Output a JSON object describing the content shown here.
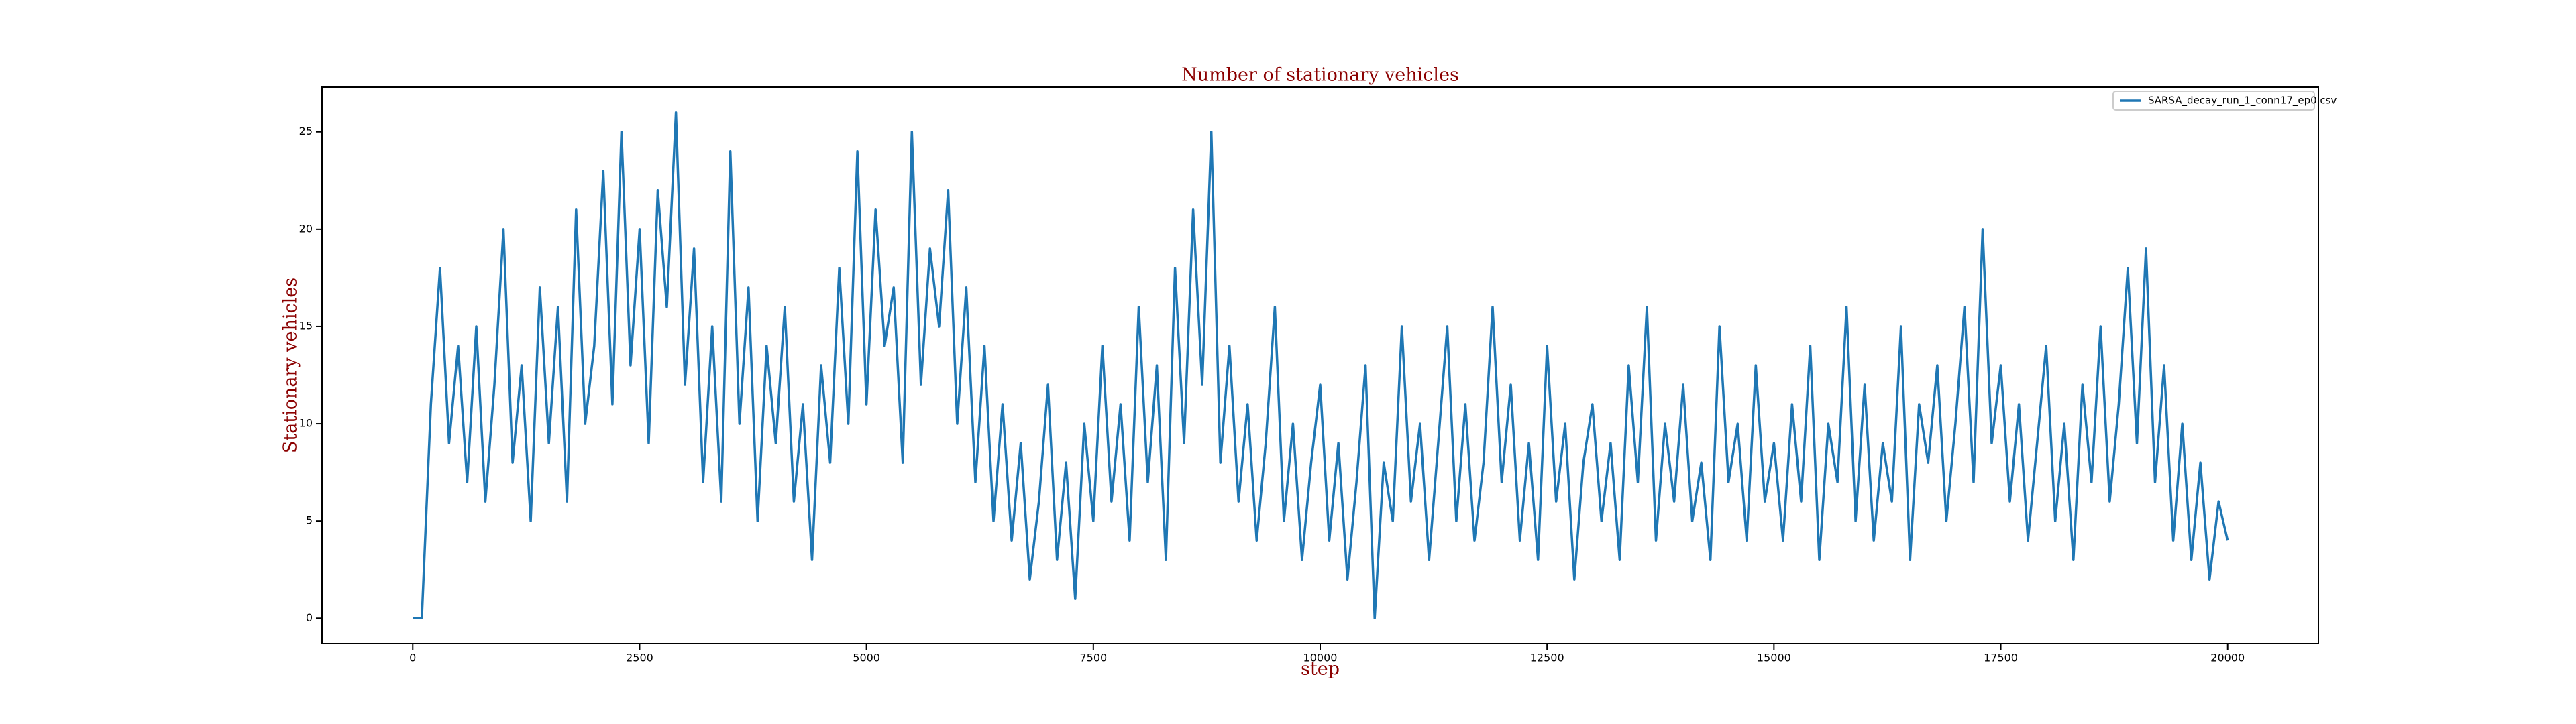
{
  "chart_data": {
    "type": "line",
    "title": "Number of stationary vehicles",
    "xlabel": "step",
    "ylabel": "Stationary vehicles",
    "x": [
      0,
      100,
      200,
      300,
      400,
      500,
      600,
      700,
      800,
      900,
      1000,
      1100,
      1200,
      1300,
      1400,
      1500,
      1600,
      1700,
      1800,
      1900,
      2000,
      2100,
      2200,
      2300,
      2400,
      2500,
      2600,
      2700,
      2800,
      2900,
      3000,
      3100,
      3200,
      3300,
      3400,
      3500,
      3600,
      3700,
      3800,
      3900,
      4000,
      4100,
      4200,
      4300,
      4400,
      4500,
      4600,
      4700,
      4800,
      4900,
      5000,
      5100,
      5200,
      5300,
      5400,
      5500,
      5600,
      5700,
      5800,
      5900,
      6000,
      6100,
      6200,
      6300,
      6400,
      6500,
      6600,
      6700,
      6800,
      6900,
      7000,
      7100,
      7200,
      7300,
      7400,
      7500,
      7600,
      7700,
      7800,
      7900,
      8000,
      8100,
      8200,
      8300,
      8400,
      8500,
      8600,
      8700,
      8800,
      8900,
      9000,
      9100,
      9200,
      9300,
      9400,
      9500,
      9600,
      9700,
      9800,
      9900,
      10000,
      10100,
      10200,
      10300,
      10400,
      10500,
      10600,
      10700,
      10800,
      10900,
      11000,
      11100,
      11200,
      11300,
      11400,
      11500,
      11600,
      11700,
      11800,
      11900,
      12000,
      12100,
      12200,
      12300,
      12400,
      12500,
      12600,
      12700,
      12800,
      12900,
      13000,
      13100,
      13200,
      13300,
      13400,
      13500,
      13600,
      13700,
      13800,
      13900,
      14000,
      14100,
      14200,
      14300,
      14400,
      14500,
      14600,
      14700,
      14800,
      14900,
      15000,
      15100,
      15200,
      15300,
      15400,
      15500,
      15600,
      15700,
      15800,
      15900,
      16000,
      16100,
      16200,
      16300,
      16400,
      16500,
      16600,
      16700,
      16800,
      16900,
      17000,
      17100,
      17200,
      17300,
      17400,
      17500,
      17600,
      17700,
      17800,
      17900,
      18000,
      18100,
      18200,
      18300,
      18400,
      18500,
      18600,
      18700,
      18800,
      18900,
      19000,
      19100,
      19200,
      19300,
      19400,
      19500,
      19600,
      19700,
      19800,
      19900,
      20000
    ],
    "series": [
      {
        "name": "SARSA_decay_run_1_conn17_ep0.csv",
        "color": "#1f77b4",
        "values": [
          0,
          0,
          11,
          18,
          9,
          14,
          7,
          15,
          6,
          12,
          20,
          8,
          13,
          5,
          17,
          9,
          16,
          6,
          21,
          10,
          14,
          23,
          11,
          25,
          13,
          20,
          9,
          22,
          16,
          26,
          12,
          19,
          7,
          15,
          6,
          24,
          10,
          17,
          5,
          14,
          9,
          16,
          6,
          11,
          3,
          13,
          8,
          18,
          10,
          24,
          11,
          21,
          14,
          17,
          8,
          25,
          12,
          19,
          15,
          22,
          10,
          17,
          7,
          14,
          5,
          11,
          4,
          9,
          2,
          6,
          12,
          3,
          8,
          1,
          10,
          5,
          14,
          6,
          11,
          4,
          16,
          7,
          13,
          3,
          18,
          9,
          21,
          12,
          25,
          8,
          14,
          6,
          11,
          4,
          9,
          16,
          5,
          10,
          3,
          8,
          12,
          4,
          9,
          2,
          7,
          13,
          0,
          8,
          5,
          15,
          6,
          10,
          3,
          9,
          15,
          5,
          11,
          4,
          8,
          16,
          7,
          12,
          4,
          9,
          3,
          14,
          6,
          10,
          2,
          8,
          11,
          5,
          9,
          3,
          13,
          7,
          16,
          4,
          10,
          6,
          12,
          5,
          8,
          3,
          15,
          7,
          10,
          4,
          13,
          6,
          9,
          4,
          11,
          6,
          14,
          3,
          10,
          7,
          16,
          5,
          12,
          4,
          9,
          6,
          15,
          3,
          11,
          8,
          13,
          5,
          10,
          16,
          7,
          20,
          9,
          13,
          6,
          11,
          4,
          9,
          14,
          5,
          10,
          3,
          12,
          7,
          15,
          6,
          11,
          18,
          9,
          19,
          7,
          13,
          4,
          10,
          3,
          8,
          2,
          6,
          4
        ]
      }
    ],
    "xlim": [
      -1000,
      21000
    ],
    "ylim": [
      -1.3,
      27.3
    ],
    "xticks": [
      0,
      2500,
      5000,
      7500,
      10000,
      12500,
      15000,
      17500,
      20000
    ],
    "yticks": [
      0,
      5,
      10,
      15,
      20,
      25
    ],
    "legend": "upper right"
  }
}
